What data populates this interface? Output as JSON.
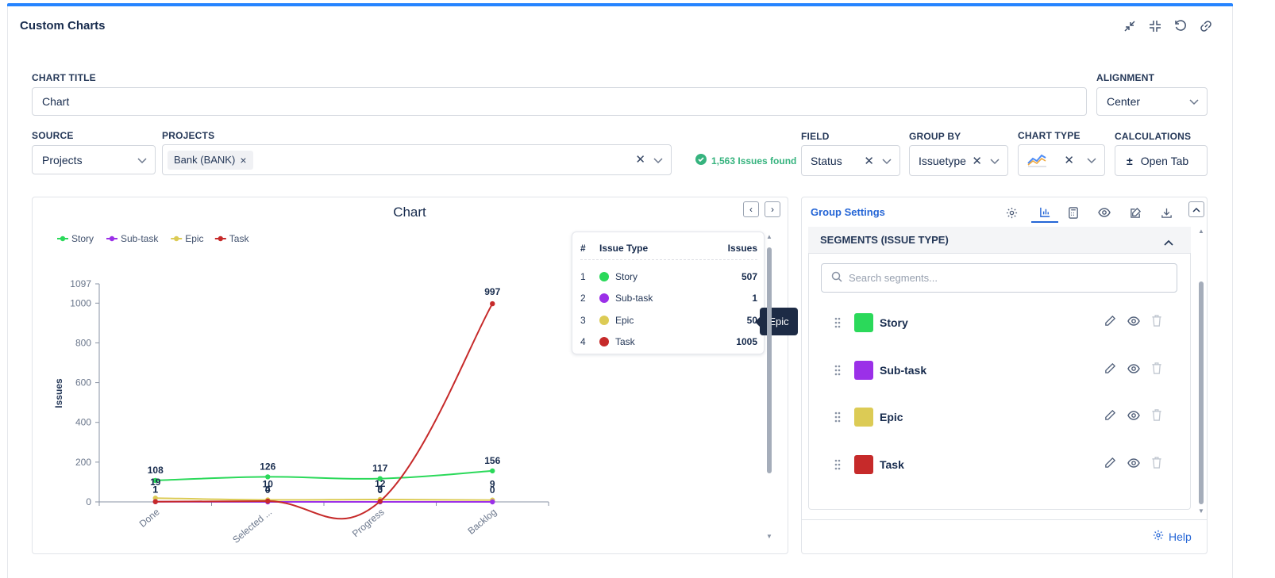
{
  "app": {
    "title": "Custom Charts"
  },
  "form": {
    "chart_title_label": "CHART TITLE",
    "chart_title_value": "Chart",
    "alignment_label": "ALIGNMENT",
    "alignment_value": "Center",
    "source_label": "SOURCE",
    "source_value": "Projects",
    "projects_label": "PROJECTS",
    "project_chip": "Bank (BANK)",
    "issues_found": "1,563 Issues found",
    "field_label": "FIELD",
    "field_value": "Status",
    "groupby_label": "GROUP BY",
    "groupby_value": "Issuetype",
    "charttype_label": "CHART TYPE",
    "calculations_label": "CALCULATIONS",
    "calculations_button": "Open Tab"
  },
  "chart_data": {
    "type": "line",
    "title": "Chart",
    "xlabel": "",
    "ylabel": "Issues",
    "categories": [
      "Done",
      "Selected ...",
      "Progress",
      "Backlog"
    ],
    "ylim": [
      0,
      1097
    ],
    "yticks": [
      0,
      200,
      400,
      600,
      800,
      1000,
      1097
    ],
    "legend_position": "top-left",
    "series": [
      {
        "name": "Story",
        "color": "#2bd95a",
        "values": [
          108,
          126,
          117,
          156
        ]
      },
      {
        "name": "Sub-task",
        "color": "#9b30e8",
        "values": [
          1,
          0,
          0,
          0
        ]
      },
      {
        "name": "Epic",
        "color": "#dccb55",
        "values": [
          19,
          10,
          12,
          9
        ]
      },
      {
        "name": "Task",
        "color": "#c62a2a",
        "values": [
          1,
          4,
          3,
          997
        ]
      }
    ]
  },
  "legend_table": {
    "headers": {
      "num": "#",
      "type": "Issue Type",
      "issues": "Issues"
    },
    "rows": [
      {
        "num": "1",
        "name": "Story",
        "issues": "507",
        "color": "#2bd95a"
      },
      {
        "num": "2",
        "name": "Sub-task",
        "issues": "1",
        "color": "#9b30e8"
      },
      {
        "num": "3",
        "name": "Epic",
        "issues": "50",
        "color": "#dccb55"
      },
      {
        "num": "4",
        "name": "Task",
        "issues": "1005",
        "color": "#c62a2a"
      }
    ],
    "tooltip": "Epic"
  },
  "group_settings": {
    "title": "Group Settings",
    "segments_header": "SEGMENTS (ISSUE TYPE)",
    "search_placeholder": "Search segments...",
    "segments": [
      {
        "name": "Story",
        "color": "#2bd95a"
      },
      {
        "name": "Sub-task",
        "color": "#9b30e8"
      },
      {
        "name": "Epic",
        "color": "#dccb55"
      },
      {
        "name": "Task",
        "color": "#c62a2a"
      }
    ],
    "help": "Help"
  },
  "colors": {
    "accent": "#2684ff",
    "link": "#2465d6",
    "success": "#36b37e"
  }
}
